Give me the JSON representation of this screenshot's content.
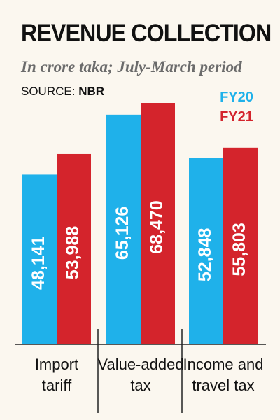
{
  "header": {
    "title": "REVENUE COLLECTION",
    "subtitle": "In crore taka; July-March period",
    "source_label": "SOURCE:",
    "source_value": "NBR"
  },
  "chart_data": {
    "type": "bar",
    "title": "REVENUE COLLECTION",
    "subtitle": "In crore taka; July-March period",
    "categories": [
      [
        "Import",
        "tariff"
      ],
      [
        "Value-added",
        "tax"
      ],
      [
        "Income and",
        "travel tax"
      ]
    ],
    "series": [
      {
        "name": "FY20",
        "color": "#1fb1ea",
        "values": [
          48141,
          65126,
          52848
        ],
        "labels": [
          "48,141",
          "65,126",
          "52,848"
        ]
      },
      {
        "name": "FY21",
        "color": "#d4242c",
        "values": [
          53988,
          68470,
          55803
        ],
        "labels": [
          "53,988",
          "68,470",
          "55,803"
        ]
      }
    ],
    "ylim": [
      0,
      75000
    ],
    "legend_position": "top-right",
    "grid": false
  }
}
